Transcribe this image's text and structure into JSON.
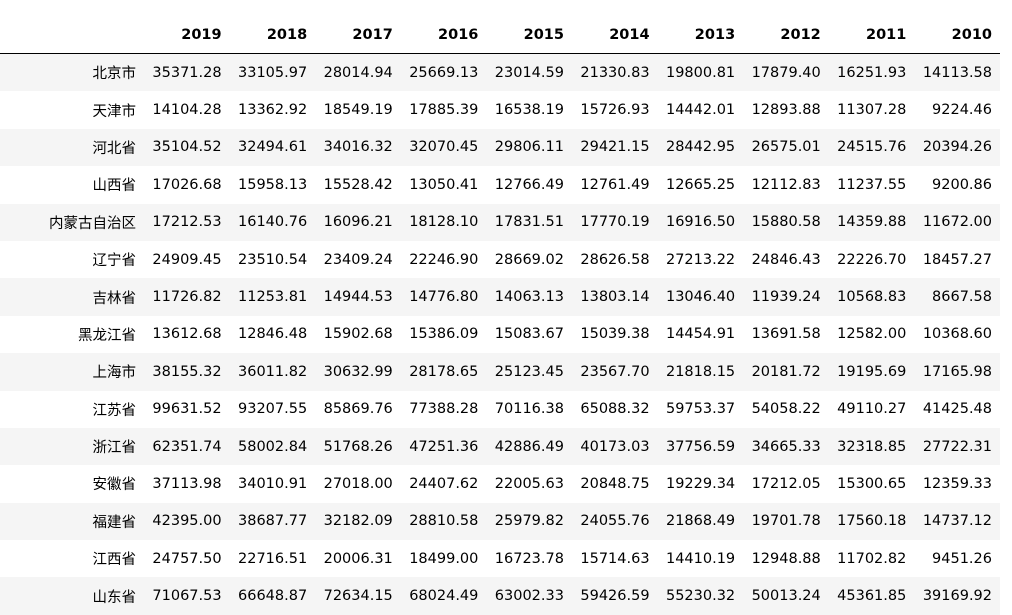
{
  "table": {
    "index_header": "",
    "columns": [
      "2019",
      "2018",
      "2017",
      "2016",
      "2015",
      "2014",
      "2013",
      "2012",
      "2011",
      "2010"
    ],
    "rows": [
      {
        "name": "北京市",
        "values": [
          "35371.28",
          "33105.97",
          "28014.94",
          "25669.13",
          "23014.59",
          "21330.83",
          "19800.81",
          "17879.40",
          "16251.93",
          "14113.58"
        ]
      },
      {
        "name": "天津市",
        "values": [
          "14104.28",
          "13362.92",
          "18549.19",
          "17885.39",
          "16538.19",
          "15726.93",
          "14442.01",
          "12893.88",
          "11307.28",
          "9224.46"
        ]
      },
      {
        "name": "河北省",
        "values": [
          "35104.52",
          "32494.61",
          "34016.32",
          "32070.45",
          "29806.11",
          "29421.15",
          "28442.95",
          "26575.01",
          "24515.76",
          "20394.26"
        ]
      },
      {
        "name": "山西省",
        "values": [
          "17026.68",
          "15958.13",
          "15528.42",
          "13050.41",
          "12766.49",
          "12761.49",
          "12665.25",
          "12112.83",
          "11237.55",
          "9200.86"
        ]
      },
      {
        "name": "内蒙古自治区",
        "values": [
          "17212.53",
          "16140.76",
          "16096.21",
          "18128.10",
          "17831.51",
          "17770.19",
          "16916.50",
          "15880.58",
          "14359.88",
          "11672.00"
        ]
      },
      {
        "name": "辽宁省",
        "values": [
          "24909.45",
          "23510.54",
          "23409.24",
          "22246.90",
          "28669.02",
          "28626.58",
          "27213.22",
          "24846.43",
          "22226.70",
          "18457.27"
        ]
      },
      {
        "name": "吉林省",
        "values": [
          "11726.82",
          "11253.81",
          "14944.53",
          "14776.80",
          "14063.13",
          "13803.14",
          "13046.40",
          "11939.24",
          "10568.83",
          "8667.58"
        ]
      },
      {
        "name": "黑龙江省",
        "values": [
          "13612.68",
          "12846.48",
          "15902.68",
          "15386.09",
          "15083.67",
          "15039.38",
          "14454.91",
          "13691.58",
          "12582.00",
          "10368.60"
        ]
      },
      {
        "name": "上海市",
        "values": [
          "38155.32",
          "36011.82",
          "30632.99",
          "28178.65",
          "25123.45",
          "23567.70",
          "21818.15",
          "20181.72",
          "19195.69",
          "17165.98"
        ]
      },
      {
        "name": "江苏省",
        "values": [
          "99631.52",
          "93207.55",
          "85869.76",
          "77388.28",
          "70116.38",
          "65088.32",
          "59753.37",
          "54058.22",
          "49110.27",
          "41425.48"
        ]
      },
      {
        "name": "浙江省",
        "values": [
          "62351.74",
          "58002.84",
          "51768.26",
          "47251.36",
          "42886.49",
          "40173.03",
          "37756.59",
          "34665.33",
          "32318.85",
          "27722.31"
        ]
      },
      {
        "name": "安徽省",
        "values": [
          "37113.98",
          "34010.91",
          "27018.00",
          "24407.62",
          "22005.63",
          "20848.75",
          "19229.34",
          "17212.05",
          "15300.65",
          "12359.33"
        ]
      },
      {
        "name": "福建省",
        "values": [
          "42395.00",
          "38687.77",
          "32182.09",
          "28810.58",
          "25979.82",
          "24055.76",
          "21868.49",
          "19701.78",
          "17560.18",
          "14737.12"
        ]
      },
      {
        "name": "江西省",
        "values": [
          "24757.50",
          "22716.51",
          "20006.31",
          "18499.00",
          "16723.78",
          "15714.63",
          "14410.19",
          "12948.88",
          "11702.82",
          "9451.26"
        ]
      },
      {
        "name": "山东省",
        "values": [
          "71067.53",
          "66648.87",
          "72634.15",
          "68024.49",
          "63002.33",
          "59426.59",
          "55230.32",
          "50013.24",
          "45361.85",
          "39169.92"
        ]
      }
    ]
  }
}
